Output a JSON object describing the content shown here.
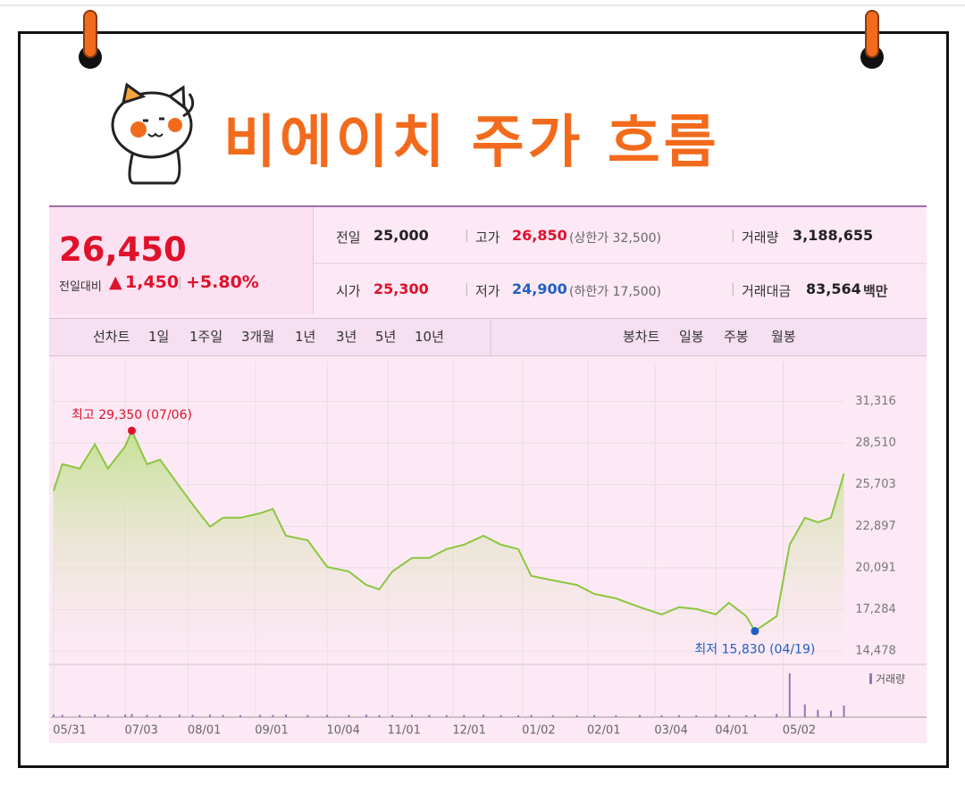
{
  "title": "비에이치 주가 흐름",
  "quote": {
    "price": "26,450",
    "change_label": "전일대비",
    "change_sign": "▲",
    "change": "1,450",
    "change_pct": "+5.80%",
    "fields": [
      {
        "label": "전일",
        "value": "25,000"
      },
      {
        "label": "고가",
        "value": "26,850",
        "note": "(상한가 32,500)"
      },
      {
        "label": "거래량",
        "value": "3,188,655"
      },
      {
        "label": "시가",
        "value": "25,300"
      },
      {
        "label": "저가",
        "value": "24,900",
        "note": "(하한가 17,500)"
      },
      {
        "label": "거래대금",
        "value": "83,564",
        "unit": "백만"
      }
    ]
  },
  "tabs": {
    "line_label": "선차트",
    "line": [
      "1일",
      "1주일",
      "3개월",
      "1년",
      "3년",
      "5년",
      "10년"
    ],
    "candle_label": "봉차트",
    "candle": [
      "일봉",
      "주봉",
      "월봉"
    ]
  },
  "chart_data": {
    "type": "area",
    "x": [
      "05/31",
      "06/04",
      "06/12",
      "06/19",
      "06/25",
      "07/03",
      "07/06",
      "07/13",
      "07/19",
      "07/28",
      "08/03",
      "08/11",
      "08/17",
      "08/25",
      "09/03",
      "09/09",
      "09/15",
      "09/25",
      "10/04",
      "10/14",
      "10/22",
      "10/28",
      "11/03",
      "11/12",
      "11/20",
      "11/28",
      "12/06",
      "12/15",
      "12/23",
      "12/31",
      "01/06",
      "01/16",
      "01/27",
      "02/04",
      "02/14",
      "02/25",
      "03/07",
      "03/15",
      "03/23",
      "04/01",
      "04/07",
      "04/15",
      "04/19",
      "04/29",
      "05/05",
      "05/12",
      "05/18",
      "05/24",
      "05/30"
    ],
    "values": [
      25280,
      27090,
      26790,
      28420,
      26790,
      28300,
      29350,
      27090,
      27390,
      25580,
      24380,
      22870,
      23470,
      23470,
      23770,
      24070,
      22260,
      21960,
      20150,
      19850,
      18940,
      18640,
      19850,
      20760,
      20760,
      21360,
      21660,
      22260,
      21660,
      21360,
      19550,
      19250,
      18940,
      18340,
      18040,
      17440,
      16950,
      17440,
      17320,
      16950,
      17740,
      16830,
      15830,
      16830,
      21660,
      23470,
      23170,
      23470,
      26450
    ],
    "color": "#8cc640",
    "ylim": [
      13700,
      34000
    ],
    "yticks": [
      {
        "value": 31316,
        "label": "31,316"
      },
      {
        "value": 28510,
        "label": "28,510"
      },
      {
        "value": 25703,
        "label": "25,703"
      },
      {
        "value": 22897,
        "label": "22,897"
      },
      {
        "value": 20091,
        "label": "20,091"
      },
      {
        "value": 17284,
        "label": "17,284"
      },
      {
        "value": 14478,
        "label": "14,478"
      }
    ],
    "xticks": [
      "05/31",
      "07/03",
      "08/01",
      "09/01",
      "10/04",
      "11/01",
      "12/01",
      "01/02",
      "02/01",
      "03/04",
      "04/01",
      "05/02"
    ],
    "grid": true,
    "annotations": [
      {
        "text": "최고 29,350 (07/06)",
        "color": "#e0112b"
      },
      {
        "text": "최저 15,830 (04/19)",
        "color": "#1f5fc4"
      }
    ],
    "volume": {
      "name": "거래량",
      "color": "#8d7ab0",
      "ylim": [
        0,
        12500000
      ],
      "values": [
        700000,
        650000,
        600000,
        750000,
        600000,
        700000,
        900000,
        650000,
        600000,
        700000,
        650000,
        700000,
        600000,
        550000,
        650000,
        600000,
        700000,
        600000,
        650000,
        600000,
        700000,
        550000,
        600000,
        650000,
        600000,
        550000,
        600000,
        650000,
        550000,
        500000,
        600000,
        550000,
        500000,
        550000,
        500000,
        600000,
        500000,
        550000,
        500000,
        600000,
        550000,
        500000,
        650000,
        900000,
        12000000,
        3500000,
        2000000,
        1800000,
        3188655
      ]
    }
  }
}
